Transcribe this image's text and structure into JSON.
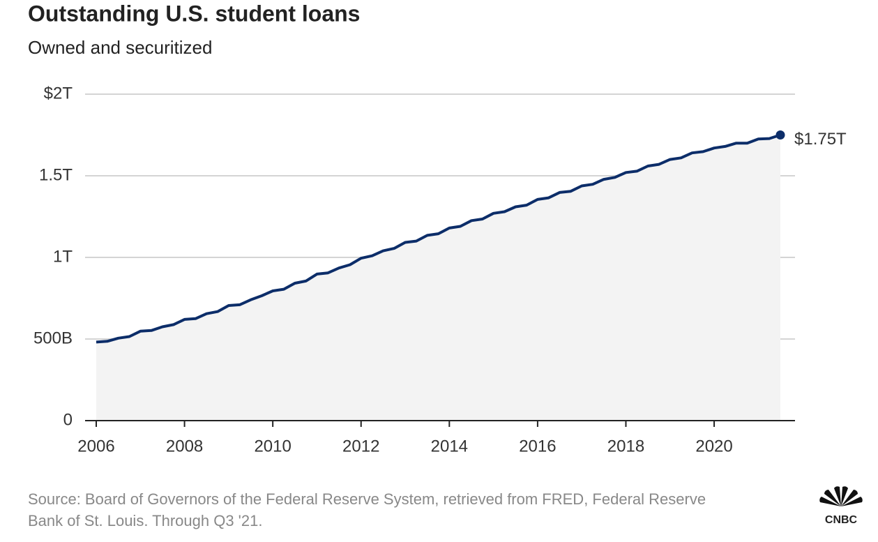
{
  "chart_data": {
    "type": "area-line",
    "title": "Outstanding U.S. student loans",
    "subtitle": "Owned and securitized",
    "x": [
      2006,
      2006.25,
      2006.5,
      2006.75,
      2007,
      2007.25,
      2007.5,
      2007.75,
      2008,
      2008.25,
      2008.5,
      2008.75,
      2009,
      2009.25,
      2009.5,
      2009.75,
      2010,
      2010.25,
      2010.5,
      2010.75,
      2011,
      2011.25,
      2011.5,
      2011.75,
      2012,
      2012.25,
      2012.5,
      2012.75,
      2013,
      2013.25,
      2013.5,
      2013.75,
      2014,
      2014.25,
      2014.5,
      2014.75,
      2015,
      2015.25,
      2015.5,
      2015.75,
      2016,
      2016.25,
      2016.5,
      2016.75,
      2017,
      2017.25,
      2017.5,
      2017.75,
      2018,
      2018.25,
      2018.5,
      2018.75,
      2019,
      2019.25,
      2019.5,
      2019.75,
      2020,
      2020.25,
      2020.5,
      2020.75,
      2021,
      2021.25,
      2021.5
    ],
    "values": [
      481,
      486,
      505,
      515,
      548,
      552,
      575,
      588,
      620,
      625,
      655,
      668,
      705,
      710,
      740,
      765,
      795,
      805,
      842,
      855,
      898,
      905,
      935,
      955,
      995,
      1010,
      1040,
      1055,
      1092,
      1100,
      1135,
      1145,
      1180,
      1190,
      1225,
      1235,
      1270,
      1280,
      1310,
      1320,
      1355,
      1365,
      1398,
      1405,
      1438,
      1448,
      1478,
      1490,
      1520,
      1528,
      1560,
      1570,
      1600,
      1610,
      1640,
      1648,
      1670,
      1680,
      1700,
      1700,
      1725,
      1728,
      1750
    ],
    "end_label": "$1.75T",
    "color": "#0c2d69",
    "area_color": "#f3f3f3",
    "xlim": [
      2006,
      2021.5
    ],
    "xticks": [
      2006,
      2008,
      2010,
      2012,
      2014,
      2016,
      2018,
      2020
    ],
    "ylim": [
      0,
      2000
    ],
    "yticks": [
      0,
      {
        "value": 500,
        "label": "500B"
      },
      {
        "value": 1000,
        "label": "1T"
      },
      {
        "value": 1500,
        "label": "1.5T"
      },
      {
        "value": 2000,
        "label": "$2T"
      }
    ],
    "grid": true,
    "source": [
      "Source: Board of Governors of the Federal Reserve System, retrieved from FRED, Federal Reserve",
      "Bank of St. Louis. Through Q3 '21."
    ],
    "logo_text": "CNBC"
  }
}
